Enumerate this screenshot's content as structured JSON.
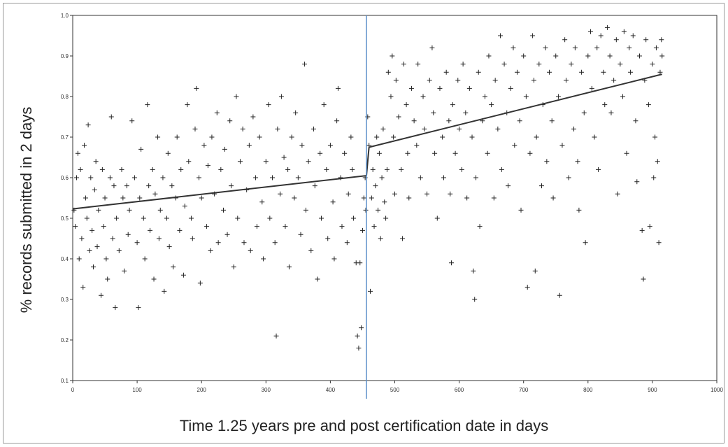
{
  "chart_data": {
    "type": "scatter",
    "title": "",
    "xlabel": "Time 1.25 years pre and post certification date in days",
    "ylabel": "% records submitted in 2 days",
    "xlim": [
      0,
      1000
    ],
    "ylim": [
      0.1,
      1.0
    ],
    "x_ticks": [
      0,
      100,
      200,
      300,
      400,
      500,
      600,
      700,
      800,
      900,
      1000
    ],
    "y_ticks": [
      "0.1",
      "0.2",
      "0.3",
      "0.4",
      "0.5",
      "0.6",
      "0.7",
      "0.8",
      "0.9",
      "1.0"
    ],
    "grid": false,
    "legend": "none",
    "marker": "+",
    "cutoff_line": {
      "x": 456,
      "color": "#5b8fc9"
    },
    "fit_lines": [
      {
        "x": [
          0,
          456
        ],
        "y": [
          0.523,
          0.605
        ]
      },
      {
        "x": [
          456,
          460
        ],
        "y": [
          0.605,
          0.675
        ]
      },
      {
        "x": [
          460,
          915
        ],
        "y": [
          0.675,
          0.855
        ]
      }
    ],
    "points": [
      [
        2,
        0.52
      ],
      [
        4,
        0.48
      ],
      [
        6,
        0.6
      ],
      [
        8,
        0.66
      ],
      [
        10,
        0.4
      ],
      [
        12,
        0.62
      ],
      [
        14,
        0.45
      ],
      [
        16,
        0.33
      ],
      [
        18,
        0.68
      ],
      [
        20,
        0.55
      ],
      [
        22,
        0.5
      ],
      [
        24,
        0.73
      ],
      [
        26,
        0.42
      ],
      [
        28,
        0.6
      ],
      [
        30,
        0.47
      ],
      [
        32,
        0.38
      ],
      [
        34,
        0.57
      ],
      [
        36,
        0.64
      ],
      [
        38,
        0.43
      ],
      [
        40,
        0.52
      ],
      [
        44,
        0.31
      ],
      [
        46,
        0.62
      ],
      [
        48,
        0.48
      ],
      [
        50,
        0.55
      ],
      [
        52,
        0.4
      ],
      [
        54,
        0.35
      ],
      [
        58,
        0.6
      ],
      [
        60,
        0.75
      ],
      [
        62,
        0.45
      ],
      [
        64,
        0.58
      ],
      [
        66,
        0.28
      ],
      [
        68,
        0.5
      ],
      [
        72,
        0.42
      ],
      [
        76,
        0.62
      ],
      [
        78,
        0.55
      ],
      [
        80,
        0.37
      ],
      [
        84,
        0.58
      ],
      [
        86,
        0.46
      ],
      [
        88,
        0.52
      ],
      [
        92,
        0.74
      ],
      [
        96,
        0.6
      ],
      [
        100,
        0.44
      ],
      [
        102,
        0.28
      ],
      [
        104,
        0.55
      ],
      [
        106,
        0.67
      ],
      [
        110,
        0.5
      ],
      [
        112,
        0.4
      ],
      [
        116,
        0.78
      ],
      [
        118,
        0.58
      ],
      [
        120,
        0.47
      ],
      [
        124,
        0.62
      ],
      [
        126,
        0.35
      ],
      [
        128,
        0.56
      ],
      [
        132,
        0.7
      ],
      [
        134,
        0.45
      ],
      [
        136,
        0.52
      ],
      [
        140,
        0.6
      ],
      [
        142,
        0.32
      ],
      [
        146,
        0.5
      ],
      [
        148,
        0.66
      ],
      [
        150,
        0.43
      ],
      [
        154,
        0.58
      ],
      [
        156,
        0.38
      ],
      [
        160,
        0.55
      ],
      [
        162,
        0.7
      ],
      [
        166,
        0.47
      ],
      [
        168,
        0.62
      ],
      [
        172,
        0.36
      ],
      [
        174,
        0.53
      ],
      [
        178,
        0.78
      ],
      [
        180,
        0.64
      ],
      [
        184,
        0.5
      ],
      [
        186,
        0.45
      ],
      [
        190,
        0.72
      ],
      [
        192,
        0.82
      ],
      [
        196,
        0.6
      ],
      [
        198,
        0.34
      ],
      [
        200,
        0.55
      ],
      [
        204,
        0.68
      ],
      [
        208,
        0.48
      ],
      [
        210,
        0.63
      ],
      [
        214,
        0.42
      ],
      [
        216,
        0.7
      ],
      [
        220,
        0.56
      ],
      [
        224,
        0.76
      ],
      [
        226,
        0.44
      ],
      [
        230,
        0.62
      ],
      [
        234,
        0.52
      ],
      [
        236,
        0.67
      ],
      [
        240,
        0.46
      ],
      [
        244,
        0.74
      ],
      [
        246,
        0.58
      ],
      [
        250,
        0.38
      ],
      [
        254,
        0.8
      ],
      [
        256,
        0.5
      ],
      [
        260,
        0.64
      ],
      [
        264,
        0.72
      ],
      [
        266,
        0.44
      ],
      [
        270,
        0.57
      ],
      [
        274,
        0.68
      ],
      [
        276,
        0.42
      ],
      [
        280,
        0.75
      ],
      [
        284,
        0.6
      ],
      [
        286,
        0.48
      ],
      [
        290,
        0.7
      ],
      [
        294,
        0.54
      ],
      [
        296,
        0.4
      ],
      [
        300,
        0.64
      ],
      [
        304,
        0.78
      ],
      [
        306,
        0.5
      ],
      [
        310,
        0.6
      ],
      [
        314,
        0.44
      ],
      [
        316,
        0.21
      ],
      [
        318,
        0.72
      ],
      [
        322,
        0.56
      ],
      [
        324,
        0.8
      ],
      [
        328,
        0.65
      ],
      [
        330,
        0.48
      ],
      [
        334,
        0.62
      ],
      [
        336,
        0.38
      ],
      [
        340,
        0.7
      ],
      [
        344,
        0.55
      ],
      [
        346,
        0.76
      ],
      [
        350,
        0.6
      ],
      [
        354,
        0.46
      ],
      [
        356,
        0.68
      ],
      [
        360,
        0.88
      ],
      [
        362,
        0.52
      ],
      [
        366,
        0.64
      ],
      [
        370,
        0.42
      ],
      [
        374,
        0.72
      ],
      [
        376,
        0.58
      ],
      [
        380,
        0.35
      ],
      [
        384,
        0.66
      ],
      [
        386,
        0.5
      ],
      [
        390,
        0.78
      ],
      [
        394,
        0.62
      ],
      [
        396,
        0.45
      ],
      [
        400,
        0.68
      ],
      [
        404,
        0.54
      ],
      [
        406,
        0.4
      ],
      [
        410,
        0.74
      ],
      [
        412,
        0.82
      ],
      [
        416,
        0.6
      ],
      [
        418,
        0.48
      ],
      [
        422,
        0.66
      ],
      [
        426,
        0.44
      ],
      [
        428,
        0.56
      ],
      [
        432,
        0.7
      ],
      [
        434,
        0.62
      ],
      [
        436,
        0.5
      ],
      [
        440,
        0.39
      ],
      [
        442,
        0.21
      ],
      [
        444,
        0.18
      ],
      [
        446,
        0.39
      ],
      [
        448,
        0.23
      ],
      [
        450,
        0.47
      ],
      [
        452,
        0.55
      ],
      [
        454,
        0.6
      ],
      [
        455,
        0.52
      ],
      [
        458,
        0.75
      ],
      [
        460,
        0.68
      ],
      [
        462,
        0.32
      ],
      [
        464,
        0.55
      ],
      [
        466,
        0.62
      ],
      [
        468,
        0.48
      ],
      [
        470,
        0.58
      ],
      [
        472,
        0.7
      ],
      [
        474,
        0.52
      ],
      [
        476,
        0.66
      ],
      [
        478,
        0.45
      ],
      [
        480,
        0.6
      ],
      [
        482,
        0.72
      ],
      [
        484,
        0.54
      ],
      [
        486,
        0.5
      ],
      [
        488,
        0.62
      ],
      [
        490,
        0.86
      ],
      [
        494,
        0.8
      ],
      [
        496,
        0.9
      ],
      [
        498,
        0.7
      ],
      [
        500,
        0.56
      ],
      [
        502,
        0.84
      ],
      [
        506,
        0.75
      ],
      [
        510,
        0.62
      ],
      [
        512,
        0.45
      ],
      [
        514,
        0.88
      ],
      [
        518,
        0.78
      ],
      [
        520,
        0.66
      ],
      [
        522,
        0.55
      ],
      [
        526,
        0.82
      ],
      [
        530,
        0.74
      ],
      [
        534,
        0.68
      ],
      [
        536,
        0.88
      ],
      [
        540,
        0.6
      ],
      [
        544,
        0.8
      ],
      [
        546,
        0.72
      ],
      [
        550,
        0.56
      ],
      [
        554,
        0.84
      ],
      [
        558,
        0.92
      ],
      [
        560,
        0.76
      ],
      [
        562,
        0.66
      ],
      [
        566,
        0.5
      ],
      [
        570,
        0.82
      ],
      [
        574,
        0.7
      ],
      [
        576,
        0.6
      ],
      [
        580,
        0.86
      ],
      [
        584,
        0.74
      ],
      [
        586,
        0.56
      ],
      [
        588,
        0.39
      ],
      [
        590,
        0.78
      ],
      [
        594,
        0.66
      ],
      [
        598,
        0.84
      ],
      [
        600,
        0.72
      ],
      [
        604,
        0.62
      ],
      [
        606,
        0.88
      ],
      [
        610,
        0.76
      ],
      [
        612,
        0.55
      ],
      [
        616,
        0.82
      ],
      [
        620,
        0.7
      ],
      [
        622,
        0.37
      ],
      [
        624,
        0.3
      ],
      [
        626,
        0.6
      ],
      [
        630,
        0.86
      ],
      [
        632,
        0.48
      ],
      [
        636,
        0.74
      ],
      [
        640,
        0.8
      ],
      [
        644,
        0.66
      ],
      [
        646,
        0.9
      ],
      [
        650,
        0.78
      ],
      [
        654,
        0.55
      ],
      [
        656,
        0.84
      ],
      [
        660,
        0.72
      ],
      [
        664,
        0.95
      ],
      [
        666,
        0.62
      ],
      [
        670,
        0.88
      ],
      [
        674,
        0.76
      ],
      [
        676,
        0.58
      ],
      [
        680,
        0.82
      ],
      [
        684,
        0.92
      ],
      [
        686,
        0.68
      ],
      [
        690,
        0.86
      ],
      [
        694,
        0.74
      ],
      [
        696,
        0.52
      ],
      [
        700,
        0.9
      ],
      [
        704,
        0.8
      ],
      [
        706,
        0.33
      ],
      [
        710,
        0.66
      ],
      [
        714,
        0.95
      ],
      [
        716,
        0.84
      ],
      [
        718,
        0.37
      ],
      [
        720,
        0.7
      ],
      [
        724,
        0.88
      ],
      [
        728,
        0.58
      ],
      [
        730,
        0.78
      ],
      [
        734,
        0.92
      ],
      [
        736,
        0.64
      ],
      [
        740,
        0.86
      ],
      [
        744,
        0.74
      ],
      [
        746,
        0.55
      ],
      [
        750,
        0.9
      ],
      [
        754,
        0.8
      ],
      [
        756,
        0.31
      ],
      [
        760,
        0.68
      ],
      [
        764,
        0.94
      ],
      [
        766,
        0.84
      ],
      [
        770,
        0.6
      ],
      [
        774,
        0.88
      ],
      [
        778,
        0.72
      ],
      [
        780,
        0.92
      ],
      [
        784,
        0.64
      ],
      [
        786,
        0.52
      ],
      [
        790,
        0.86
      ],
      [
        794,
        0.76
      ],
      [
        796,
        0.44
      ],
      [
        800,
        0.9
      ],
      [
        804,
        0.96
      ],
      [
        806,
        0.82
      ],
      [
        810,
        0.7
      ],
      [
        814,
        0.92
      ],
      [
        816,
        0.62
      ],
      [
        820,
        0.95
      ],
      [
        824,
        0.86
      ],
      [
        826,
        0.78
      ],
      [
        830,
        0.97
      ],
      [
        834,
        0.9
      ],
      [
        836,
        0.76
      ],
      [
        840,
        0.84
      ],
      [
        844,
        0.94
      ],
      [
        846,
        0.56
      ],
      [
        850,
        0.88
      ],
      [
        854,
        0.8
      ],
      [
        856,
        0.96
      ],
      [
        860,
        0.66
      ],
      [
        864,
        0.92
      ],
      [
        866,
        0.86
      ],
      [
        870,
        0.95
      ],
      [
        874,
        0.74
      ],
      [
        876,
        0.59
      ],
      [
        880,
        0.9
      ],
      [
        884,
        0.47
      ],
      [
        886,
        0.35
      ],
      [
        888,
        0.84
      ],
      [
        890,
        0.94
      ],
      [
        894,
        0.78
      ],
      [
        896,
        0.48
      ],
      [
        900,
        0.88
      ],
      [
        902,
        0.6
      ],
      [
        904,
        0.7
      ],
      [
        906,
        0.92
      ],
      [
        908,
        0.64
      ],
      [
        910,
        0.44
      ],
      [
        912,
        0.86
      ],
      [
        914,
        0.94
      ],
      [
        915,
        0.9
      ]
    ]
  }
}
